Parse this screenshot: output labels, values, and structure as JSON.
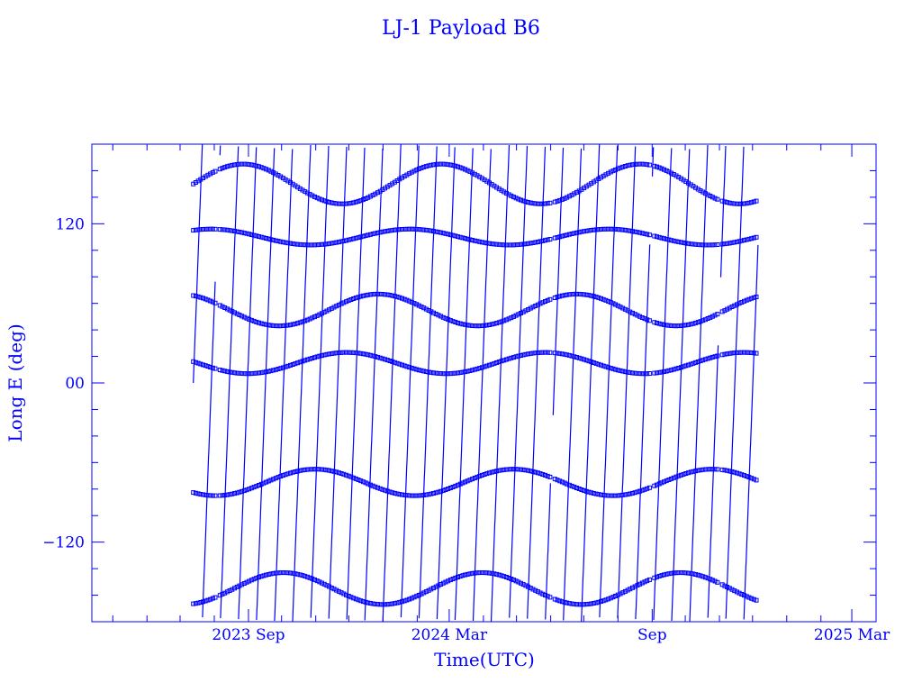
{
  "chart_data": {
    "type": "line",
    "title": "LJ-1 Payload B6",
    "xlabel": "Time(UTC)",
    "ylabel": "Long E (deg)",
    "ylim": [
      -180,
      180
    ],
    "xlim": [
      "2023-04-12",
      "2025-03-23"
    ],
    "x_ticks": [
      {
        "date": "2023-09-01",
        "label": "2023 Sep"
      },
      {
        "date": "2024-03-01",
        "label": "2024 Mar"
      },
      {
        "date": "2024-09-01",
        "label": "Sep"
      },
      {
        "date": "2025-03-01",
        "label": "2025 Mar"
      }
    ],
    "y_ticks": [
      {
        "value": -120,
        "label": "−120"
      },
      {
        "value": 0,
        "label": "00"
      },
      {
        "value": 120,
        "label": "120"
      }
    ],
    "data_range": [
      "2023-07-13",
      "2024-12-06"
    ],
    "gaps": [
      [
        "2023-08-02",
        "2023-08-06"
      ],
      [
        "2024-06-01",
        "2024-06-03"
      ],
      [
        "2024-08-30",
        "2024-09-01"
      ],
      [
        "2024-10-31",
        "2024-11-02"
      ]
    ],
    "drift_deg_per_day": 22,
    "levels": [
      {
        "base": 150,
        "amplitude": 15
      },
      {
        "base": 110,
        "amplitude": 6
      },
      {
        "base": 55,
        "amplitude": 12
      },
      {
        "base": 15,
        "amplitude": 8
      },
      {
        "base": -75,
        "amplitude": 10
      },
      {
        "base": -155,
        "amplitude": 12
      }
    ],
    "series": [
      {
        "values_description_hidden": true
      }
    ],
    "grid": false,
    "colors": {
      "line": "#0000ff",
      "axes": "#0000ff",
      "background": "#ffffff"
    }
  }
}
